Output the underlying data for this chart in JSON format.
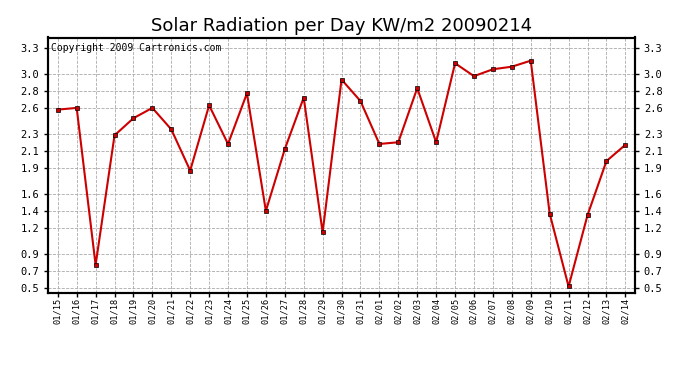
{
  "title": "Solar Radiation per Day KW/m2 20090214",
  "copyright": "Copyright 2009 Cartronics.com",
  "x_labels": [
    "01/15",
    "01/16",
    "01/17",
    "01/18",
    "01/19",
    "01/20",
    "01/21",
    "01/22",
    "01/23",
    "01/24",
    "01/25",
    "01/26",
    "01/27",
    "01/28",
    "01/29",
    "01/30",
    "01/31",
    "02/01",
    "02/02",
    "02/03",
    "02/04",
    "02/05",
    "02/06",
    "02/07",
    "02/08",
    "02/09",
    "02/10",
    "02/11",
    "02/12",
    "02/13",
    "02/14"
  ],
  "y_values": [
    2.58,
    2.6,
    0.77,
    2.28,
    2.48,
    2.6,
    2.35,
    1.87,
    2.63,
    2.18,
    2.77,
    1.4,
    2.12,
    2.72,
    1.15,
    2.93,
    2.68,
    2.18,
    2.2,
    2.83,
    2.2,
    3.12,
    2.97,
    3.05,
    3.08,
    3.15,
    1.37,
    0.52,
    1.35,
    1.98,
    2.17
  ],
  "ylim": [
    0.45,
    3.42
  ],
  "left_yticks": [
    3.3,
    3.0,
    2.8,
    2.6,
    2.3,
    2.1,
    1.9,
    1.6,
    1.4,
    1.2,
    0.9,
    0.7,
    0.5
  ],
  "right_yticks": [
    3.3,
    3.0,
    2.8,
    2.6,
    2.3,
    2.1,
    1.9,
    1.6,
    1.4,
    1.2,
    0.9,
    0.7,
    0.5
  ],
  "line_color": "#cc0000",
  "marker": "s",
  "marker_size": 3,
  "bg_color": "#ffffff",
  "grid_color": "#aaaaaa",
  "title_fontsize": 13,
  "copyright_fontsize": 7,
  "tick_fontsize": 7.5,
  "xtick_fontsize": 6.2
}
